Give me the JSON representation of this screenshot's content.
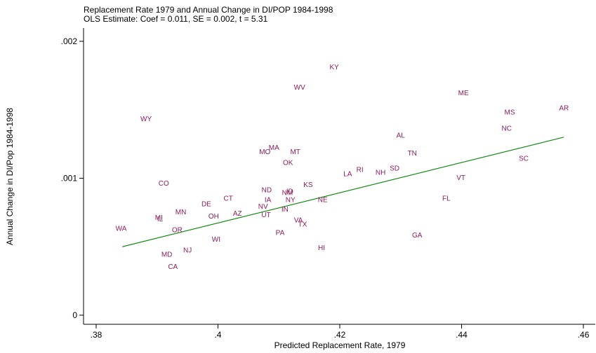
{
  "chart_data": {
    "type": "scatter",
    "title": "Replacement Rate 1979 and Annual Change in DI/POP 1984-1998",
    "subtitle": "OLS Estimate: Coef = 0.011, SE = 0.002, t = 5.31",
    "xlabel": "Predicted Replacement Rate, 1979",
    "ylabel": "Annual Change in DI/Pop 1984-1998",
    "labels": [
      "KY",
      "WV",
      "ME",
      "AR",
      "MS",
      "WY",
      "NC",
      "AL",
      "MA",
      "MO",
      "MT",
      "TN",
      "SC",
      "OK",
      "SD",
      "RI",
      "NH",
      "LA",
      "VT",
      "CO",
      "KS",
      "ND",
      "NM",
      "ID",
      "CT",
      "IA",
      "NY",
      "FL",
      "NE",
      "DE",
      "NV",
      "MN",
      "IN",
      "AZ",
      "OH",
      "UT",
      "MI",
      "IL",
      "VA",
      "TX",
      "WA",
      "OR",
      "PA",
      "GA",
      "WI",
      "HI",
      "NJ",
      "MD",
      "CA"
    ],
    "x": [
      0.4191,
      0.4134,
      0.4403,
      0.4568,
      0.4479,
      0.3882,
      0.4474,
      0.43,
      0.4092,
      0.4077,
      0.4127,
      0.4319,
      0.4502,
      0.4115,
      0.429,
      0.4233,
      0.4267,
      0.4213,
      0.4399,
      0.3911,
      0.4148,
      0.408,
      0.4114,
      0.4118,
      0.4017,
      0.4082,
      0.4119,
      0.4375,
      0.4172,
      0.3981,
      0.4074,
      0.3939,
      0.411,
      0.4032,
      0.3993,
      0.4079,
      0.3903,
      0.3905,
      0.4132,
      0.4139,
      0.3841,
      0.3933,
      0.4102,
      0.4327,
      0.3997,
      0.417,
      0.395,
      0.3916,
      0.3926
    ],
    "values": [
      0.00181,
      0.00166,
      0.00162,
      0.00151,
      0.00148,
      0.00143,
      0.00136,
      0.00131,
      0.00122,
      0.00119,
      0.00119,
      0.00118,
      0.00114,
      0.00111,
      0.00107,
      0.00106,
      0.00104,
      0.00103,
      0.001,
      0.00096,
      0.00095,
      0.00091,
      0.00089,
      0.0009,
      0.00085,
      0.00084,
      0.00084,
      0.00085,
      0.00084,
      0.00081,
      0.00079,
      0.00075,
      0.00077,
      0.00074,
      0.00072,
      0.00073,
      0.00071,
      0.0007,
      0.00069,
      0.00066,
      0.00063,
      0.00062,
      0.0006,
      0.00058,
      0.00055,
      0.00049,
      0.00047,
      0.00044,
      0.00035
    ],
    "color": "#8b1c5a",
    "fit": {
      "x": [
        0.3843,
        0.4568
      ],
      "values": [
        0.0005,
        0.0013
      ],
      "color": "#1a8a1a"
    },
    "xlim": [
      0.37793,
      0.46207
    ],
    "ylim": [
      -6.65e-05,
      0.002097
    ],
    "xticks": [
      {
        "value": 0.38,
        "label": ".38"
      },
      {
        "value": 0.4,
        "label": ".4"
      },
      {
        "value": 0.42,
        "label": ".42"
      },
      {
        "value": 0.44,
        "label": ".44"
      },
      {
        "value": 0.46,
        "label": ".46"
      }
    ],
    "yticks": [
      0,
      {
        "value": 0.001,
        "label": ".001"
      },
      {
        "value": 0.002,
        "label": ".002"
      }
    ],
    "grid": false
  }
}
